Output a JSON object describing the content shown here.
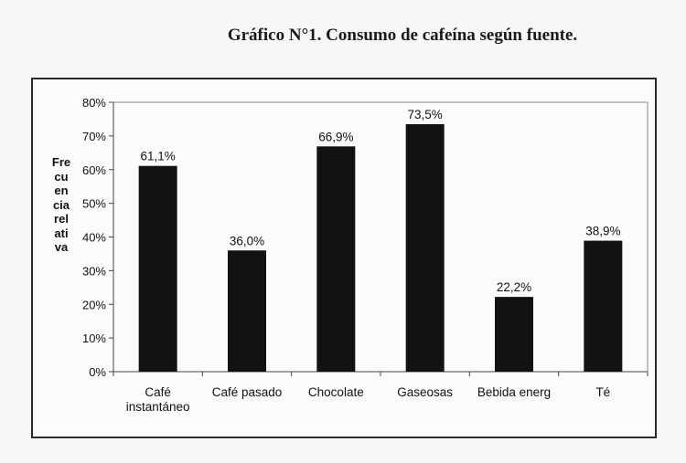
{
  "chart_data": {
    "type": "bar",
    "title": "Gráfico N°1. Consumo de cafeína según fuente.",
    "ylabel_lines": [
      "Fre",
      "cu",
      "en",
      "cia",
      "rel",
      "ati",
      "va"
    ],
    "xlabel": "",
    "categories": [
      [
        "Café",
        "instantáneo"
      ],
      [
        "Café pasado"
      ],
      [
        "Chocolate"
      ],
      [
        "Gaseosas"
      ],
      [
        "Bebida energ"
      ],
      [
        "Té"
      ]
    ],
    "values": [
      61.1,
      36.0,
      66.9,
      73.5,
      22.2,
      38.9
    ],
    "value_labels": [
      "61,1%",
      "36,0%",
      "66,9%",
      "73,5%",
      "22,2%",
      "38,9%"
    ],
    "ylim": [
      0,
      80
    ],
    "yticks": [
      0,
      10,
      20,
      30,
      40,
      50,
      60,
      70,
      80
    ],
    "ytick_labels": [
      "0%",
      "10%",
      "20%",
      "30%",
      "40%",
      "50%",
      "60%",
      "70%",
      "80%"
    ],
    "grid": false,
    "legend": "none",
    "bar_color": "#111111"
  }
}
